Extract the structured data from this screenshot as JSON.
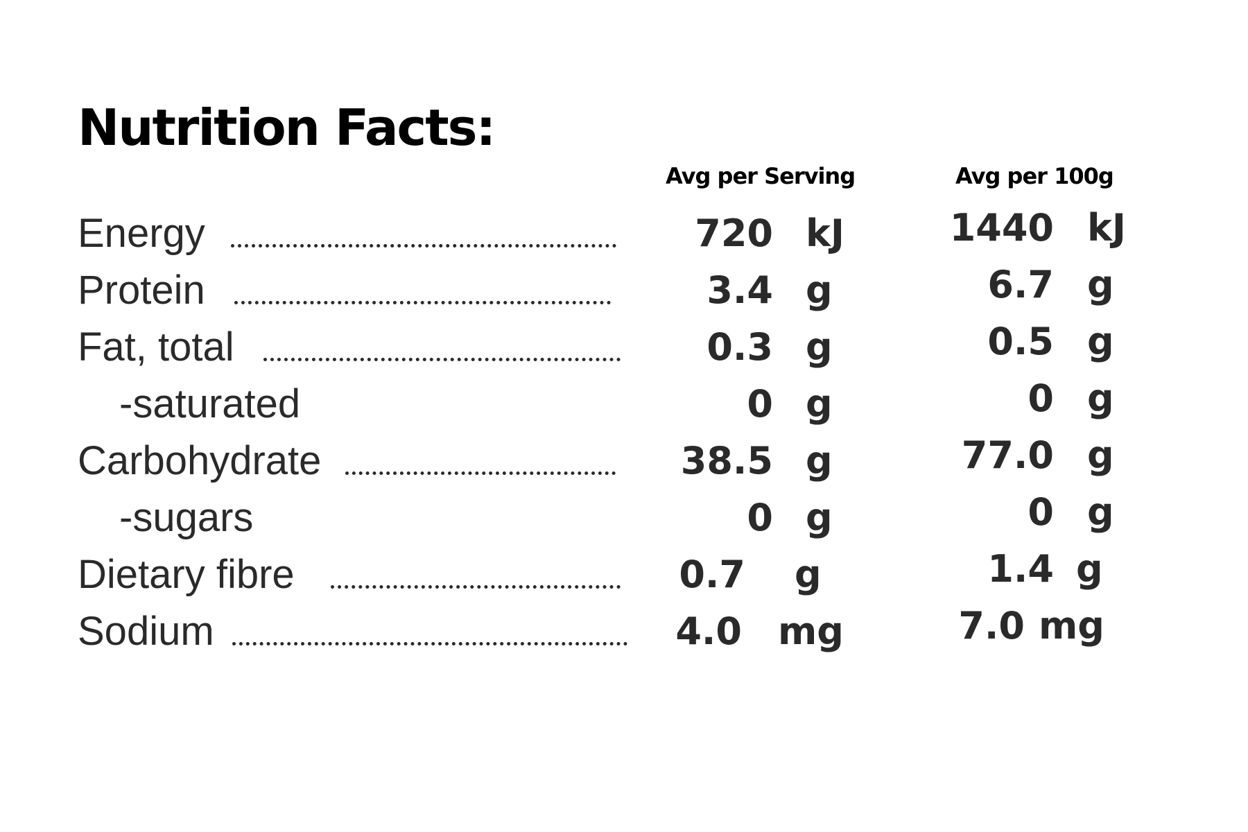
{
  "title": "Nutrition Facts:",
  "columns": {
    "per_serving": "Avg per Serving",
    "per_100g": "Avg per 100g"
  },
  "rows": [
    {
      "label": "Energy",
      "serving_value": "720",
      "serving_unit": "kJ",
      "per100_value": "1440",
      "per100_unit": "kJ"
    },
    {
      "label": "Protein",
      "serving_value": "3.4",
      "serving_unit": "g",
      "per100_value": "6.7",
      "per100_unit": "g"
    },
    {
      "label": "Fat, total",
      "serving_value": "0.3",
      "serving_unit": "g",
      "per100_value": "0.5",
      "per100_unit": "g"
    },
    {
      "label": "-saturated",
      "serving_value": "0",
      "serving_unit": "g",
      "per100_value": "0",
      "per100_unit": "g"
    },
    {
      "label": "Carbohydrate",
      "serving_value": "38.5",
      "serving_unit": "g",
      "per100_value": "77.0",
      "per100_unit": "g"
    },
    {
      "label": "-sugars",
      "serving_value": "0",
      "serving_unit": "g",
      "per100_value": "0",
      "per100_unit": "g"
    },
    {
      "label": "Dietary fibre",
      "serving_value": "0.7",
      "serving_unit": "g",
      "per100_value": "1.4",
      "per100_unit": "g"
    },
    {
      "label": "Sodium",
      "serving_value": "4.0",
      "serving_unit": "mg",
      "per100_value": "7.0",
      "per100_unit": "mg"
    }
  ]
}
